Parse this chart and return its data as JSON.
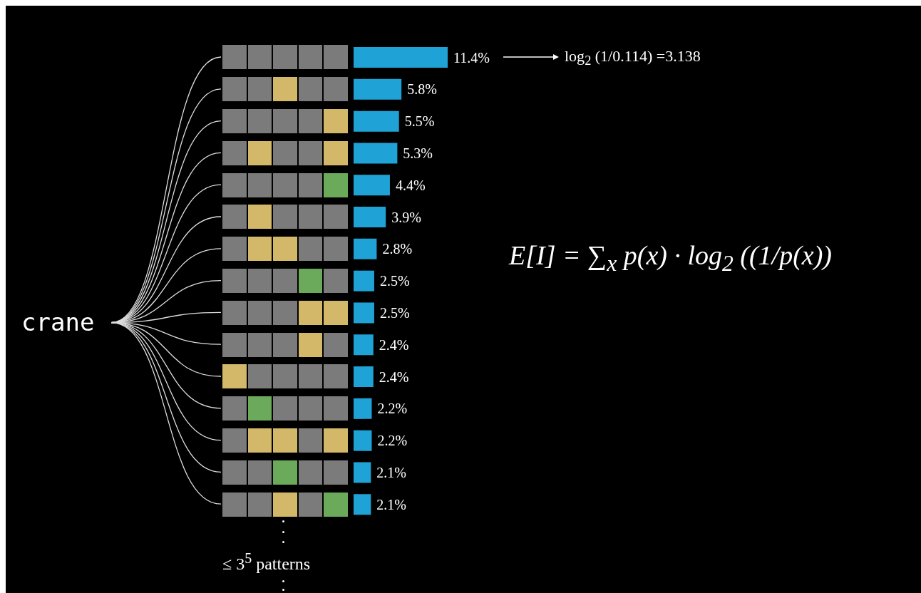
{
  "chart_data": {
    "type": "bar",
    "orientation": "horizontal",
    "categories": [
      null,
      null,
      null,
      null,
      null,
      null,
      null,
      null,
      null,
      null,
      null,
      null,
      null,
      null,
      null
    ],
    "values": [
      11.4,
      5.8,
      5.5,
      5.3,
      4.4,
      3.9,
      2.8,
      2.5,
      2.5,
      2.4,
      2.4,
      2.2,
      2.2,
      2.1,
      2.1
    ],
    "value_labels": [
      "11.4%",
      "5.8%",
      "5.5%",
      "5.3%",
      "4.4%",
      "3.9%",
      "2.8%",
      "2.5%",
      "2.5%",
      "2.4%",
      "2.4%",
      "2.2%",
      "2.2%",
      "2.1%",
      "2.1%"
    ],
    "color": "#1fa3d6",
    "tick_labels": false,
    "annotations": [
      "crane",
      "log$_{2}$ (1/0.114) =3.138",
      "E[I] = ∑$_{x}$ p(x) · log$_{2}$ ((1/p(x))",
      "≤ 3$^{5}$ patterns"
    ]
  }
}
